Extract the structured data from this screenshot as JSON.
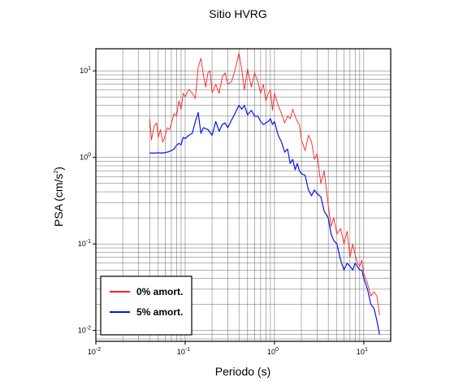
{
  "chart_data": {
    "type": "line",
    "title": "Sitio HVRG",
    "xlabel": "Periodo (s)",
    "ylabel_base": "PSA (cm/s",
    "ylabel_sup": "2",
    "ylabel_end": ")",
    "xscale": "log",
    "yscale": "log",
    "xlim": [
      0.01,
      20
    ],
    "ylim": [
      0.0075,
      18
    ],
    "grid": true,
    "legend_position": "bottom-left",
    "x_ticks": [
      {
        "base": "10",
        "exp": "-2",
        "value": 0.01
      },
      {
        "base": "10",
        "exp": "-1",
        "value": 0.1
      },
      {
        "base": "10",
        "exp": "0",
        "value": 1
      },
      {
        "base": "10",
        "exp": "1",
        "value": 10
      }
    ],
    "y_ticks": [
      {
        "base": "10",
        "exp": "1",
        "value": 10
      },
      {
        "base": "10",
        "exp": "0",
        "value": 1
      },
      {
        "base": "10",
        "exp": "-1",
        "value": 0.1
      },
      {
        "base": "10",
        "exp": "-2",
        "value": 0.01
      }
    ],
    "series": [
      {
        "name": "0% amort.",
        "color": "#ff2020",
        "x": [
          0.04,
          0.042,
          0.045,
          0.048,
          0.05,
          0.053,
          0.056,
          0.06,
          0.063,
          0.067,
          0.071,
          0.075,
          0.08,
          0.085,
          0.09,
          0.095,
          0.1,
          0.11,
          0.12,
          0.13,
          0.14,
          0.15,
          0.16,
          0.17,
          0.18,
          0.19,
          0.2,
          0.22,
          0.24,
          0.26,
          0.28,
          0.3,
          0.33,
          0.36,
          0.4,
          0.43,
          0.46,
          0.5,
          0.55,
          0.6,
          0.65,
          0.7,
          0.75,
          0.8,
          0.85,
          0.9,
          0.95,
          1.0,
          1.1,
          1.2,
          1.3,
          1.4,
          1.5,
          1.6,
          1.7,
          1.8,
          1.9,
          2.0,
          2.2,
          2.4,
          2.6,
          2.8,
          3.0,
          3.3,
          3.6,
          4.0,
          4.3,
          4.6,
          5.0,
          5.5,
          6.0,
          6.5,
          7.0,
          7.5,
          8.0,
          8.5,
          9.0,
          9.5,
          10.0,
          11.0,
          12.0,
          13.0,
          14.0,
          15.0
        ],
        "y": [
          2.8,
          1.6,
          2.3,
          2.5,
          1.7,
          2.1,
          1.5,
          1.8,
          2.2,
          2.1,
          2.6,
          3.2,
          3.0,
          4.5,
          3.6,
          5.5,
          5.0,
          6.1,
          5.5,
          4.8,
          11.0,
          14.0,
          9.0,
          6.5,
          9.5,
          10.0,
          5.6,
          7.0,
          5.5,
          8.5,
          9.5,
          7.0,
          7.5,
          10.0,
          16.0,
          10.5,
          6.0,
          10.5,
          6.5,
          9.5,
          7.5,
          5.5,
          7.0,
          4.5,
          5.5,
          6.0,
          3.5,
          5.5,
          4.0,
          3.2,
          2.5,
          3.0,
          2.8,
          3.6,
          3.0,
          2.6,
          2.4,
          1.6,
          1.2,
          1.8,
          1.5,
          0.95,
          1.1,
          0.5,
          0.7,
          0.28,
          0.16,
          0.2,
          0.13,
          0.15,
          0.1,
          0.14,
          0.07,
          0.1,
          0.075,
          0.06,
          0.055,
          0.065,
          0.045,
          0.035,
          0.025,
          0.028,
          0.025,
          0.015
        ]
      },
      {
        "name": "5% amort.",
        "color": "#0a14e6",
        "x": [
          0.04,
          0.045,
          0.05,
          0.055,
          0.06,
          0.065,
          0.07,
          0.075,
          0.08,
          0.085,
          0.09,
          0.095,
          0.1,
          0.11,
          0.12,
          0.13,
          0.14,
          0.15,
          0.16,
          0.18,
          0.2,
          0.22,
          0.24,
          0.26,
          0.28,
          0.3,
          0.33,
          0.36,
          0.4,
          0.43,
          0.46,
          0.5,
          0.55,
          0.6,
          0.65,
          0.7,
          0.75,
          0.8,
          0.85,
          0.9,
          0.95,
          1.0,
          1.1,
          1.2,
          1.3,
          1.4,
          1.5,
          1.6,
          1.7,
          1.8,
          1.9,
          2.0,
          2.2,
          2.4,
          2.6,
          2.8,
          3.0,
          3.3,
          3.6,
          4.0,
          4.3,
          4.6,
          5.0,
          5.5,
          6.0,
          6.5,
          7.0,
          7.5,
          8.0,
          8.5,
          9.0,
          9.5,
          10.0,
          11.0,
          12.0,
          13.0,
          14.0,
          15.0
        ],
        "y": [
          1.12,
          1.12,
          1.13,
          1.12,
          1.14,
          1.16,
          1.2,
          1.25,
          1.38,
          1.45,
          1.4,
          1.7,
          1.65,
          1.8,
          1.9,
          2.6,
          3.3,
          1.9,
          2.2,
          2.1,
          1.8,
          2.6,
          2.0,
          2.4,
          2.5,
          2.2,
          2.7,
          3.2,
          4.0,
          3.6,
          4.0,
          3.1,
          3.5,
          3.0,
          3.0,
          2.6,
          2.4,
          2.5,
          2.6,
          2.8,
          2.4,
          2.6,
          1.8,
          1.5,
          1.15,
          1.25,
          0.85,
          0.95,
          0.72,
          0.85,
          0.7,
          0.65,
          0.62,
          0.42,
          0.36,
          0.42,
          0.38,
          0.35,
          0.24,
          0.2,
          0.13,
          0.11,
          0.1,
          0.065,
          0.05,
          0.06,
          0.055,
          0.05,
          0.06,
          0.055,
          0.05,
          0.05,
          0.04,
          0.03,
          0.02,
          0.018,
          0.013,
          0.009
        ]
      }
    ]
  }
}
